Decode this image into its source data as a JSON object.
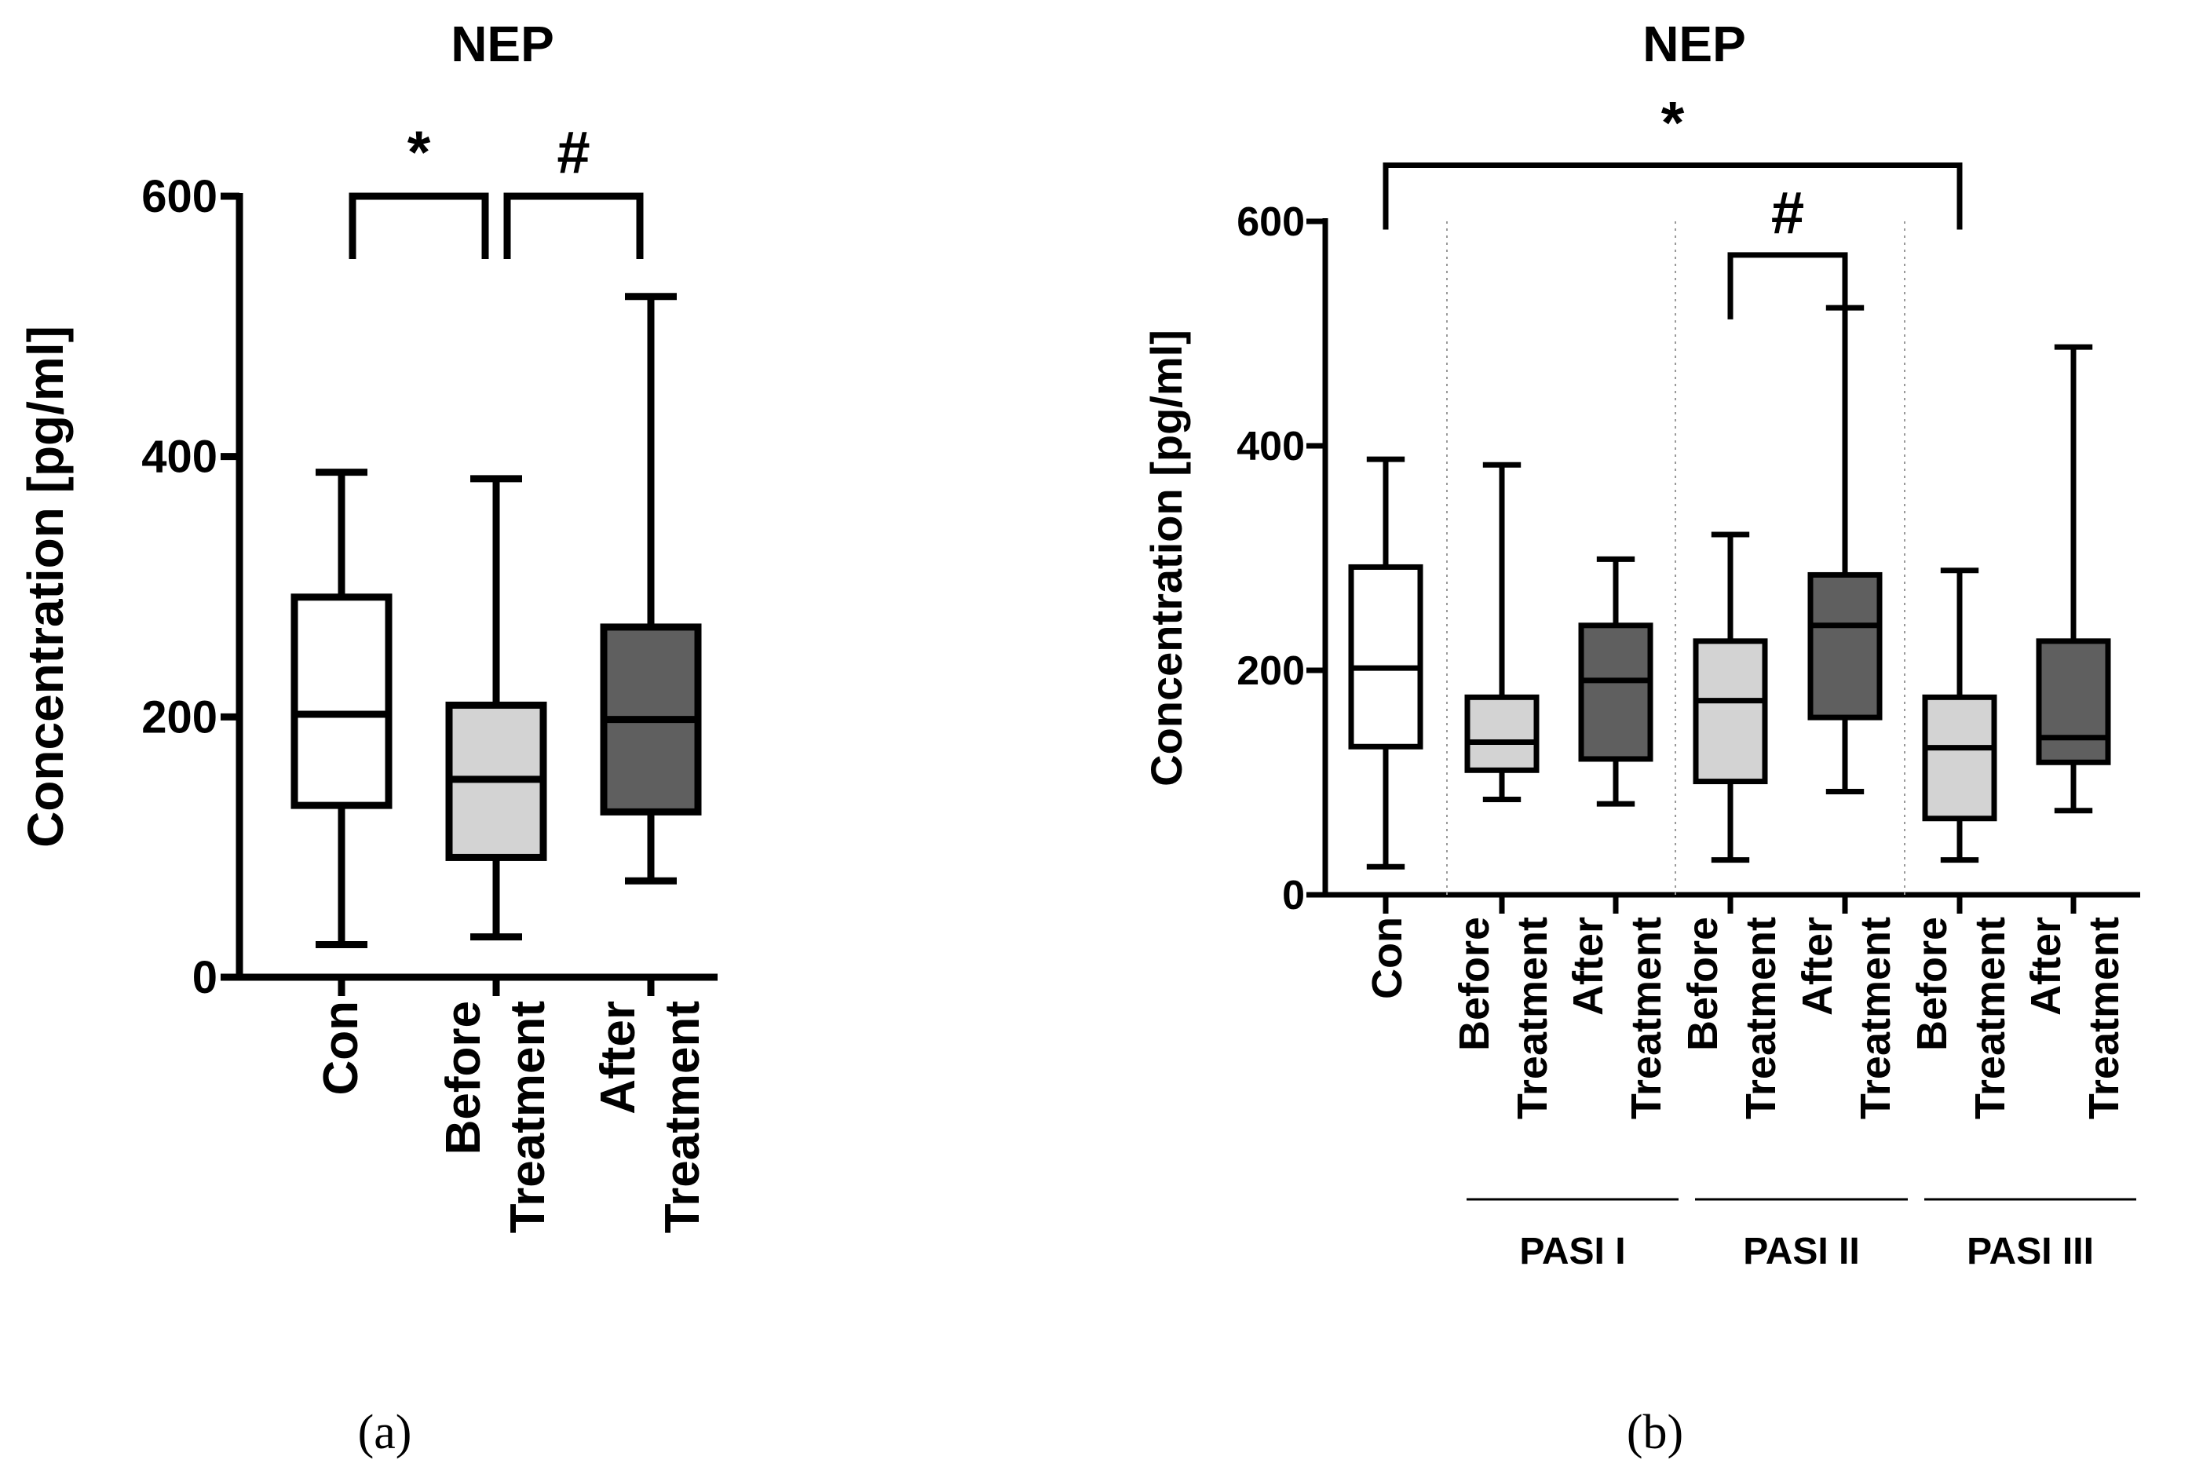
{
  "chart_data": [
    {
      "type": "boxplot",
      "title": "NEP",
      "panel_label": "(a)",
      "ylabel": "Concentration [pg/ml]",
      "ylim": [
        0,
        600
      ],
      "yticks": [
        0,
        200,
        400,
        600
      ],
      "categories": [
        {
          "lines": [
            "Con"
          ],
          "fill": "#ffffff",
          "whisker_low": 25,
          "q1": 132,
          "median": 202,
          "q3": 292,
          "whisker_high": 388
        },
        {
          "lines": [
            "Before",
            "Treatment"
          ],
          "fill": "#d3d3d3",
          "whisker_low": 31,
          "q1": 92,
          "median": 152,
          "q3": 209,
          "whisker_high": 383
        },
        {
          "lines": [
            "After",
            "Treatment"
          ],
          "fill": "#5f5f5f",
          "whisker_low": 74,
          "q1": 127,
          "median": 198,
          "q3": 269,
          "whisker_high": 523
        }
      ],
      "significance": [
        {
          "from": 0,
          "to": 1,
          "symbol": "*",
          "level": 600
        },
        {
          "from": 1,
          "to": 2,
          "symbol": "#",
          "level": 600
        }
      ]
    },
    {
      "type": "boxplot",
      "title": "NEP",
      "panel_label": "(b)",
      "ylabel": "Concentration [pg/ml]",
      "ylim": [
        0,
        600
      ],
      "yticks": [
        0,
        200,
        400,
        600
      ],
      "categories": [
        {
          "lines": [
            "Con"
          ],
          "fill": "#ffffff",
          "whisker_low": 25,
          "q1": 132,
          "median": 202,
          "q3": 292,
          "whisker_high": 388
        },
        {
          "lines": [
            "Before",
            "Treatment"
          ],
          "fill": "#d3d3d3",
          "whisker_low": 85,
          "q1": 111,
          "median": 136,
          "q3": 176,
          "whisker_high": 383
        },
        {
          "lines": [
            "After",
            "Treatment"
          ],
          "fill": "#5f5f5f",
          "whisker_low": 81,
          "q1": 121,
          "median": 191,
          "q3": 240,
          "whisker_high": 299
        },
        {
          "lines": [
            "Before",
            "Treatment"
          ],
          "fill": "#d3d3d3",
          "whisker_low": 31,
          "q1": 101,
          "median": 173,
          "q3": 226,
          "whisker_high": 321
        },
        {
          "lines": [
            "After",
            "Treatment"
          ],
          "fill": "#5f5f5f",
          "whisker_low": 92,
          "q1": 158,
          "median": 240,
          "q3": 285,
          "whisker_high": 523
        },
        {
          "lines": [
            "Before",
            "Treatment"
          ],
          "fill": "#d3d3d3",
          "whisker_low": 31,
          "q1": 68,
          "median": 131,
          "q3": 176,
          "whisker_high": 289
        },
        {
          "lines": [
            "After",
            "Treatment"
          ],
          "fill": "#5f5f5f",
          "whisker_low": 75,
          "q1": 118,
          "median": 140,
          "q3": 226,
          "whisker_high": 488
        }
      ],
      "groups": [
        {
          "label": "PASI I",
          "from": 1,
          "to": 2
        },
        {
          "label": "PASI II",
          "from": 3,
          "to": 4
        },
        {
          "label": "PASI III",
          "from": 5,
          "to": 6
        }
      ],
      "significance": [
        {
          "from": 0,
          "to": 5,
          "symbol": "*",
          "level": 650
        },
        {
          "from": 3,
          "to": 4,
          "symbol": "#",
          "level": 570
        }
      ]
    }
  ]
}
